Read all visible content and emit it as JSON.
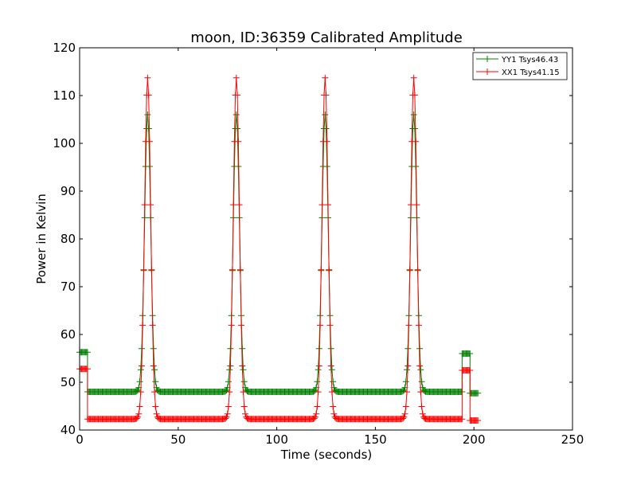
{
  "chart_data": {
    "type": "line",
    "title": "moon, ID:36359 Calibrated Amplitude",
    "xlabel": "Time (seconds)",
    "ylabel": "Power in Kelvin",
    "xlim": [
      0,
      250
    ],
    "ylim": [
      40,
      120
    ],
    "xticks": [
      0,
      50,
      100,
      150,
      200,
      250
    ],
    "yticks": [
      40,
      50,
      60,
      70,
      80,
      90,
      100,
      110,
      120
    ],
    "grid": false,
    "legend_position": "top-right",
    "marker": "+",
    "peak_centers": [
      34.5,
      79.5,
      124.5,
      169.5
    ],
    "series": [
      {
        "name": "YY1 Tsys46.43",
        "color": "#008000",
        "levels": {
          "cal_start": 56.3,
          "baseline": 48.0,
          "peak": 106.0,
          "cal_end": 56.0,
          "tail": 47.7
        }
      },
      {
        "name": "XX1 Tsys41.15",
        "color": "#ff0000",
        "levels": {
          "cal_start": 52.8,
          "baseline": 42.3,
          "peak": 113.7,
          "cal_end": 52.5,
          "tail": 42.0
        }
      }
    ]
  }
}
